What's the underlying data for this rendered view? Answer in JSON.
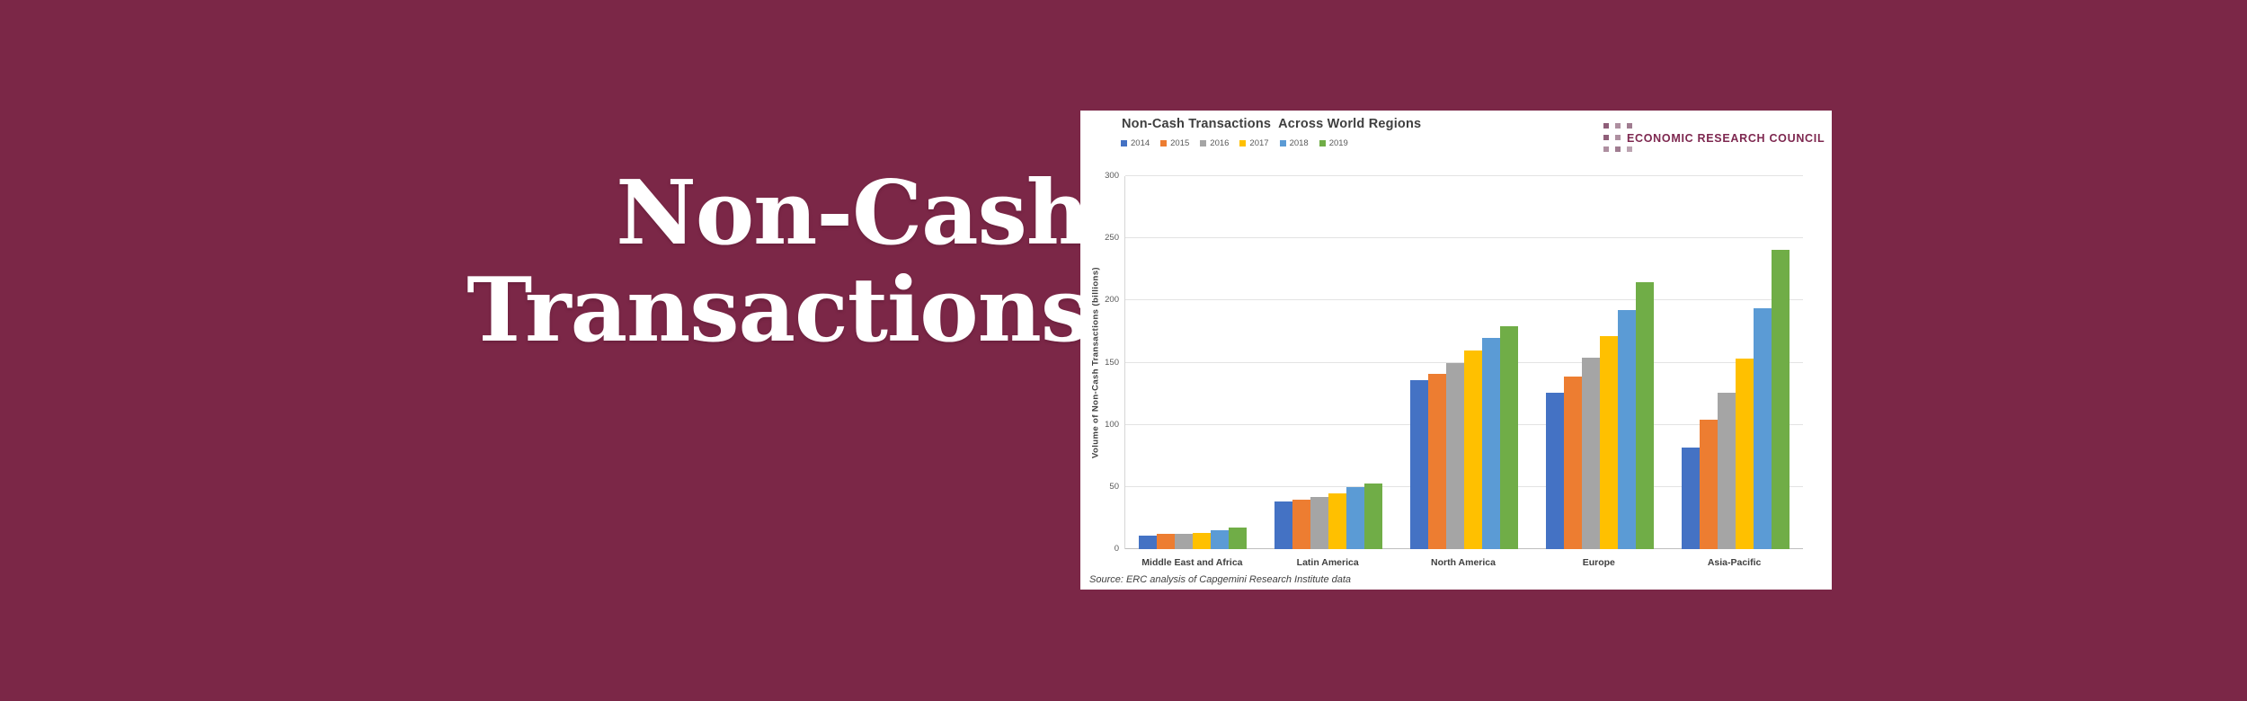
{
  "page": {
    "background_color": "#7B2747"
  },
  "headline": {
    "line1": "Non-Cash",
    "line2": "Transactions"
  },
  "panel": {
    "logo": {
      "text": "ECONOMIC RESEARCH COUNCIL",
      "text_color": "#7E2850",
      "squares": [
        [
          "#8F5E79",
          "#AE8FA0",
          "#A07C90"
        ],
        [
          "#8F5E79",
          "#AE8FA0"
        ],
        [
          "#AE8FA0",
          "#A07C90",
          "#BCA3B1"
        ]
      ]
    }
  },
  "chart_data": {
    "type": "bar",
    "title": "Non-Cash Transactions  Across World Regions",
    "ylabel": "Volume of Non-Cash Transactions (billions)",
    "xlabel": "",
    "ylim": [
      0,
      300
    ],
    "yticks": [
      0,
      50,
      100,
      150,
      200,
      250,
      300
    ],
    "grid": true,
    "legend_position": "top-left",
    "categories": [
      "Middle East and Africa",
      "Latin America",
      "North America",
      "Europe",
      "Asia-Pacific"
    ],
    "series": [
      {
        "name": "2014",
        "color": "#4472C4",
        "values": [
          11,
          38,
          136,
          126,
          82
        ]
      },
      {
        "name": "2015",
        "color": "#ED7D31",
        "values": [
          12,
          40,
          141,
          139,
          104
        ]
      },
      {
        "name": "2016",
        "color": "#A5A5A5",
        "values": [
          12,
          42,
          150,
          154,
          126
        ]
      },
      {
        "name": "2017",
        "color": "#FFC000",
        "values": [
          13,
          45,
          160,
          171,
          153
        ]
      },
      {
        "name": "2018",
        "color": "#5B9BD5",
        "values": [
          15,
          50,
          170,
          192,
          194
        ]
      },
      {
        "name": "2019",
        "color": "#70AD47",
        "values": [
          17,
          53,
          179,
          215,
          241
        ]
      }
    ],
    "source": "Source: ERC analysis of Capgemini Research Institute data"
  }
}
